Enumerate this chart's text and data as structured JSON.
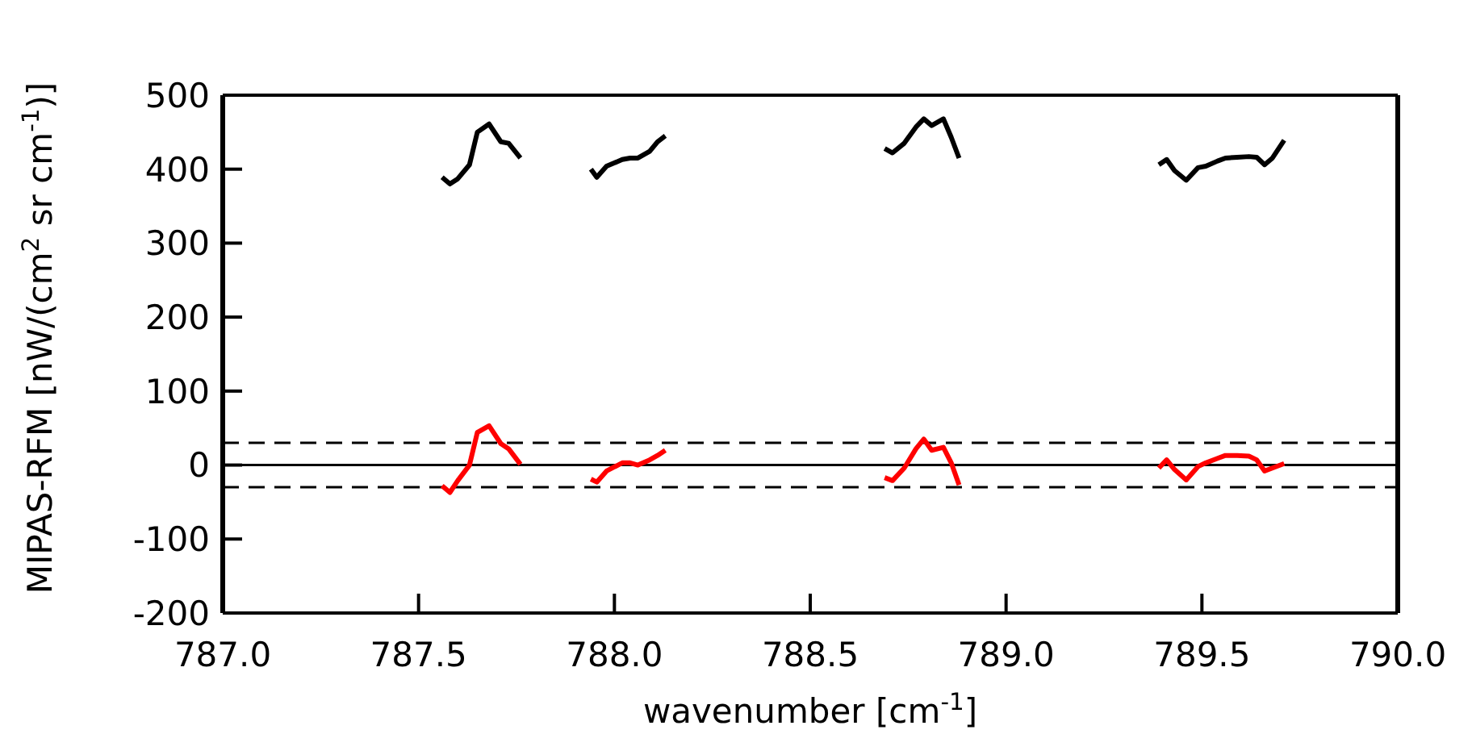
{
  "chart_data": {
    "type": "line",
    "xlabel": "wavenumber [cm$^{-1}$]",
    "ylabel": "MIPAS-RFM [nW/(cm$^{2}$ sr cm$^{-1}$)]",
    "xlim": [
      787.0,
      790.0
    ],
    "xticks": [
      {
        "value": 787,
        "label": "787.0"
      },
      {
        "value": 787.5,
        "label": "787.5"
      },
      {
        "value": 788,
        "label": "788.0"
      },
      {
        "value": 788.5,
        "label": "788.5"
      },
      {
        "value": 789,
        "label": "789.0"
      },
      {
        "value": 789.5,
        "label": "789.5"
      },
      {
        "value": 790,
        "label": "790.0"
      }
    ],
    "ylim": [
      -200,
      500
    ],
    "yticks": [
      -200,
      -100,
      0,
      100,
      200,
      300,
      400,
      500
    ],
    "marker": "none",
    "line_style": "solid",
    "series": [
      {
        "color": "#000000",
        "x": [
          787.56,
          787.58,
          787.6,
          787.63,
          787.65,
          787.68,
          787.71,
          787.73,
          787.76
        ],
        "values": [
          389,
          380,
          387,
          406,
          450,
          461,
          437,
          435,
          415
        ]
      },
      {
        "color": "#ff0000",
        "x": [
          787.56,
          787.58,
          787.6,
          787.63,
          787.65,
          787.68,
          787.71,
          787.73,
          787.76
        ],
        "values": [
          -28,
          -37,
          -21,
          0,
          44,
          53,
          29,
          22,
          1
        ]
      },
      {
        "color": "#000000",
        "x": [
          787.94,
          787.955,
          787.98,
          788.02,
          788.04,
          788.06,
          788.09,
          788.11,
          788.13
        ],
        "values": [
          400,
          389,
          404,
          413,
          415,
          415,
          424,
          437,
          445
        ]
      },
      {
        "color": "#ff0000",
        "x": [
          787.94,
          787.955,
          787.98,
          788.02,
          788.04,
          788.06,
          788.09,
          788.11,
          788.13
        ],
        "values": [
          -19,
          -23,
          -8,
          3,
          3,
          0,
          7,
          13,
          20
        ]
      },
      {
        "color": "#000000",
        "x": [
          788.69,
          788.71,
          788.74,
          788.77,
          788.79,
          788.81,
          788.84,
          788.86,
          788.88
        ],
        "values": [
          428,
          422,
          435,
          457,
          468,
          459,
          468,
          443,
          415
        ]
      },
      {
        "color": "#ff0000",
        "x": [
          788.69,
          788.71,
          788.74,
          788.77,
          788.79,
          788.81,
          788.84,
          788.86,
          788.88
        ],
        "values": [
          -17,
          -21,
          -4,
          22,
          35,
          20,
          24,
          3,
          -27
        ]
      },
      {
        "color": "#000000",
        "x": [
          789.39,
          789.41,
          789.43,
          789.46,
          789.49,
          789.51,
          789.54,
          789.56,
          789.59,
          789.62,
          789.64,
          789.66,
          789.68,
          789.71
        ],
        "values": [
          406,
          413,
          398,
          385,
          402,
          404,
          411,
          415,
          416,
          417,
          416,
          406,
          415,
          439
        ]
      },
      {
        "color": "#ff0000",
        "x": [
          789.39,
          789.41,
          789.43,
          789.46,
          789.49,
          789.51,
          789.54,
          789.56,
          789.59,
          789.62,
          789.64,
          789.66,
          789.68,
          789.71
        ],
        "values": [
          -4,
          7,
          -6,
          -20,
          -2,
          3,
          9,
          13,
          13,
          12,
          7,
          -8,
          -4,
          2
        ]
      }
    ],
    "ref_lines": [
      {
        "axis": "y",
        "value": 30,
        "color": "#000000",
        "line_style": "dashed"
      },
      {
        "axis": "y",
        "value": 0,
        "color": "#000000",
        "line_style": "solid"
      },
      {
        "axis": "y",
        "value": -30,
        "color": "#000000",
        "line_style": "dashed"
      }
    ]
  }
}
